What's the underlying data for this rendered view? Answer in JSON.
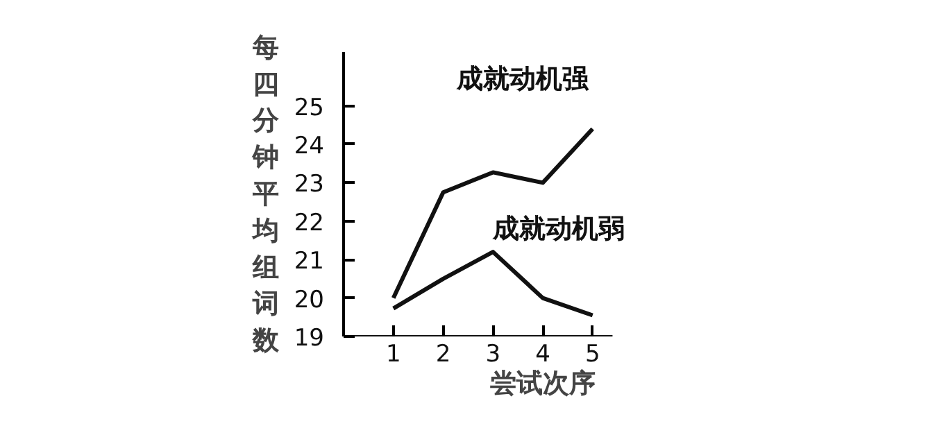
{
  "chart_data": {
    "type": "line",
    "xlabel": "尝试次序",
    "ylabel": "每四分钟平均组词数",
    "x": [
      1,
      2,
      3,
      4,
      5
    ],
    "xlim": [
      0,
      5.4
    ],
    "ylim": [
      19,
      26.4
    ],
    "xticks": [
      1,
      2,
      3,
      4,
      5
    ],
    "yticks": [
      19,
      20,
      21,
      22,
      23,
      24,
      25
    ],
    "grid": false,
    "legend": false,
    "marker": "none",
    "line_style": "solid",
    "series": [
      {
        "name": "成就动机强",
        "color": "#111111",
        "values": [
          20.0,
          22.75,
          23.27,
          23.0,
          24.4
        ]
      },
      {
        "name": "成就动机弱",
        "color": "#111111",
        "values": [
          19.73,
          20.5,
          21.2,
          20.0,
          19.55
        ]
      }
    ]
  }
}
